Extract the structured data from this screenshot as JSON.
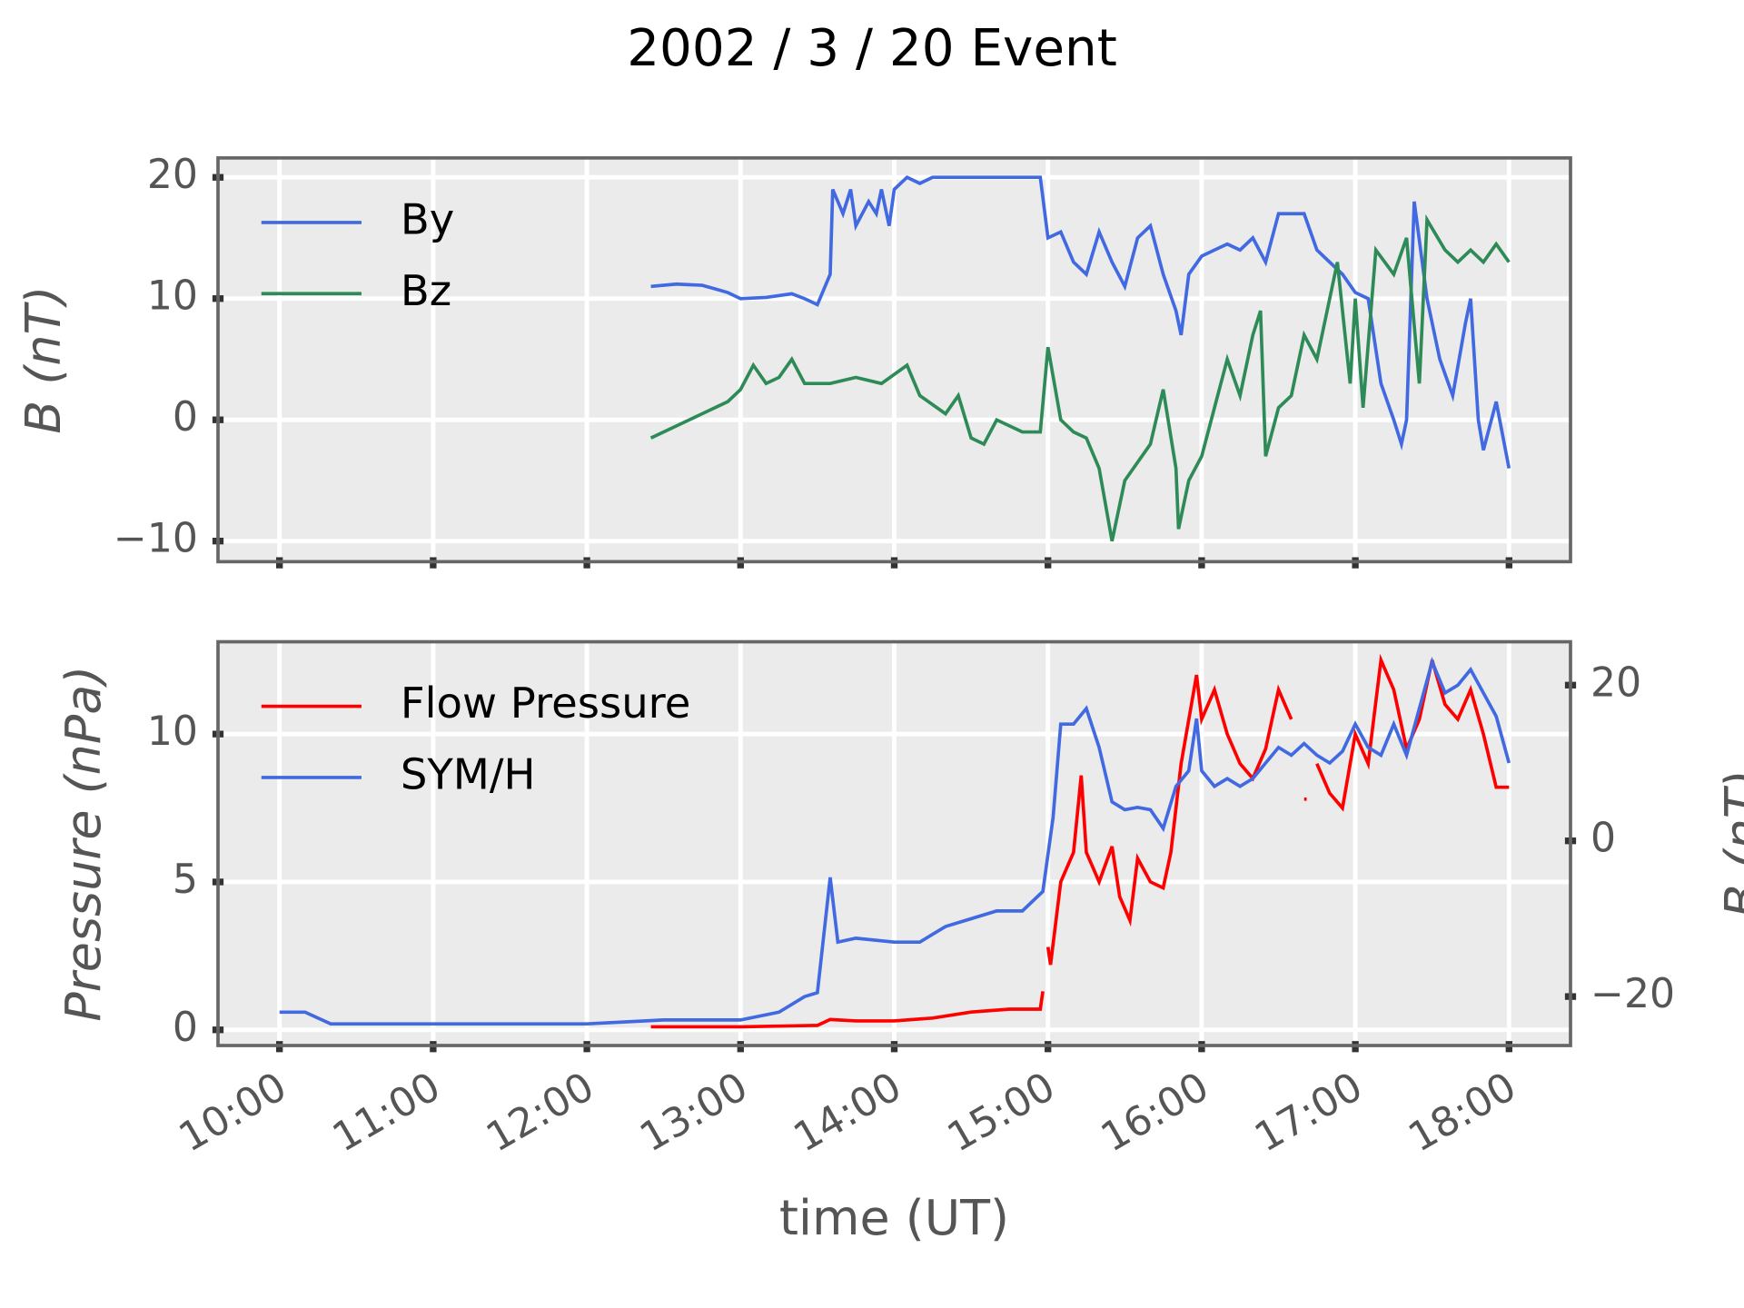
{
  "title": "2002 / 3 / 20 Event",
  "chart_data": [
    {
      "type": "line",
      "ylabel": "B (nT)",
      "grid": true,
      "legend": "upper left",
      "xlim": [
        "09:36",
        "18:24"
      ],
      "xticks": [
        "10:00",
        "11:00",
        "12:00",
        "13:00",
        "14:00",
        "15:00",
        "16:00",
        "17:00",
        "18:00"
      ],
      "ylim": [
        -11.7,
        21.6
      ],
      "yticks": [
        {
          "value": -10,
          "label": "−10"
        },
        0,
        10,
        20
      ],
      "series": [
        {
          "name": "By",
          "color": "#4169e1",
          "x": [
            "12:25",
            "12:35",
            "12:45",
            "12:50",
            "12:55",
            "13:00",
            "13:10",
            "13:20",
            "13:25",
            "13:30",
            "13:33",
            "13:35",
            "13:36",
            "13:40",
            "13:43",
            "13:45",
            "13:50",
            "13:53",
            "13:55",
            "13:58",
            "14:00",
            "14:05",
            "14:10",
            "14:15",
            "14:30",
            "14:45",
            "14:57",
            "15:00",
            "15:05",
            "15:10",
            "15:15",
            "15:20",
            "15:25",
            "15:30",
            "15:35",
            "15:40",
            "15:45",
            "15:50",
            "15:52",
            "15:55",
            "16:00",
            "16:05",
            "16:10",
            "16:15",
            "16:20",
            "16:25",
            "16:30",
            "16:40",
            "16:45",
            "16:50",
            "16:55",
            "17:00",
            "17:05",
            "17:10",
            "17:15",
            "17:18",
            "17:20",
            "17:23",
            "17:28",
            "17:33",
            "17:38",
            "17:43",
            "17:45",
            "17:48",
            "17:50",
            "17:55",
            "18:00"
          ],
          "values": [
            11,
            11.2,
            11.1,
            10.8,
            10.5,
            10,
            10.1,
            10.4,
            10,
            9.5,
            11,
            12,
            19,
            17,
            19,
            16,
            18,
            17,
            19,
            16,
            19,
            20,
            19.5,
            20,
            20,
            20,
            20,
            15,
            15.5,
            13,
            12,
            15.5,
            13,
            11,
            15,
            16,
            12,
            9,
            7,
            12,
            13.5,
            14,
            14.5,
            14,
            15,
            13,
            17,
            17,
            14,
            13,
            12,
            10.5,
            10,
            3,
            0,
            -2,
            0,
            18,
            10,
            5,
            2,
            8,
            10,
            0,
            -2.5,
            1.5,
            -4
          ]
        },
        {
          "name": "Bz",
          "color": "#2e8b57",
          "x": [
            "12:25",
            "12:35",
            "12:45",
            "12:55",
            "13:00",
            "13:05",
            "13:10",
            "13:15",
            "13:20",
            "13:25",
            "13:35",
            "13:45",
            "13:55",
            "14:05",
            "14:10",
            "14:20",
            "14:25",
            "14:30",
            "14:35",
            "14:40",
            "14:50",
            "14:57",
            "15:00",
            "15:05",
            "15:10",
            "15:15",
            "15:20",
            "15:25",
            "15:30",
            "15:40",
            "15:45",
            "15:50",
            "15:51",
            "15:55",
            "16:00",
            "16:05",
            "16:10",
            "16:15",
            "16:20",
            "16:23",
            "16:25",
            "16:30",
            "16:35",
            "16:40",
            "16:45",
            "16:50",
            "16:53",
            "16:58",
            "17:00",
            "17:03",
            "17:08",
            "17:15",
            "17:20",
            "17:25",
            "17:28",
            "17:35",
            "17:40",
            "17:45",
            "17:50",
            "17:55",
            "18:00"
          ],
          "values": [
            -1.5,
            -0.5,
            0.5,
            1.5,
            2.5,
            4.5,
            3,
            3.5,
            5,
            3,
            3,
            3.5,
            3,
            4.5,
            2,
            0.5,
            2,
            -1.5,
            -2,
            0,
            -1,
            -1,
            6,
            0,
            -1,
            -1.5,
            -4,
            -10,
            -5,
            -2,
            2.5,
            -4,
            -9,
            -5,
            -3,
            1,
            5,
            2,
            7,
            9,
            -3,
            1,
            2,
            7,
            5,
            10,
            13,
            3,
            10,
            1,
            14,
            12,
            15,
            3,
            16.5,
            14,
            13,
            14,
            13,
            14.5,
            13
          ]
        }
      ]
    },
    {
      "type": "line",
      "ylabel": "Pressure (nPa)",
      "y2label": "B (nT)",
      "xlabel": "time (UT)",
      "grid": true,
      "legend": "upper left",
      "xlim": [
        "09:36",
        "18:24"
      ],
      "xticks": [
        "10:00",
        "11:00",
        "12:00",
        "13:00",
        "14:00",
        "15:00",
        "16:00",
        "17:00",
        "18:00"
      ],
      "ylim": [
        -0.53,
        13.12
      ],
      "yticks": [
        0,
        5,
        10
      ],
      "y2lim": [
        -26.29,
        25.57
      ],
      "y2ticks": [
        {
          "value": -20,
          "label": "−20"
        },
        0,
        20
      ],
      "series": [
        {
          "name": "Flow Pressure",
          "color": "#ff0000",
          "x": [
            "12:25",
            "13:00",
            "13:30",
            "13:35",
            "13:45",
            "14:00",
            "14:15",
            "14:30",
            "14:45",
            "14:57",
            "14:58",
            "14:59",
            "15:00",
            "15:01",
            "15:05",
            "15:10",
            "15:13",
            "15:15",
            "15:20",
            "15:25",
            "15:28",
            "15:32",
            "15:35",
            "15:40",
            "15:45",
            "15:48",
            "15:52",
            "15:58",
            "16:00",
            "16:05",
            "16:10",
            "16:15",
            "16:20",
            "16:25",
            "16:30",
            "16:35",
            "16:38",
            "16:40",
            "16:41",
            "16:43",
            "16:45",
            "16:50",
            "16:55",
            "17:00",
            "17:05",
            "17:10",
            "17:15",
            "17:20",
            "17:25",
            "17:30",
            "17:35",
            "17:40",
            "17:45",
            "17:50",
            "17:55",
            "18:00"
          ],
          "values": [
            0.1,
            0.1,
            0.15,
            0.35,
            0.3,
            0.3,
            0.4,
            0.6,
            0.7,
            0.7,
            1.3,
            null,
            2.8,
            2.2,
            5,
            6,
            8.6,
            6,
            5,
            6.2,
            4.5,
            3.7,
            5.8,
            5,
            4.8,
            6,
            9,
            12,
            10.5,
            11.5,
            10,
            9,
            8.5,
            9.5,
            11.5,
            10.5,
            null,
            7.8,
            7.8,
            null,
            9,
            8,
            7.5,
            10,
            9,
            12.5,
            11.5,
            9.5,
            10.5,
            12.5,
            11,
            10.5,
            11.5,
            10,
            8.2,
            8.2
          ]
        },
        {
          "name": "SYM/H",
          "color": "#4169e1",
          "axis": "y2",
          "x": [
            "10:00",
            "10:10",
            "10:20",
            "10:30",
            "11:00",
            "11:30",
            "12:00",
            "12:30",
            "13:00",
            "13:15",
            "13:25",
            "13:30",
            "13:35",
            "13:38",
            "13:45",
            "14:00",
            "14:10",
            "14:15",
            "14:20",
            "14:30",
            "14:40",
            "14:50",
            "14:58",
            "15:02",
            "15:05",
            "15:10",
            "15:15",
            "15:20",
            "15:25",
            "15:30",
            "15:35",
            "15:40",
            "15:45",
            "15:50",
            "15:55",
            "15:58",
            "16:00",
            "16:05",
            "16:10",
            "16:15",
            "16:20",
            "16:25",
            "16:30",
            "16:35",
            "16:40",
            "16:45",
            "16:50",
            "16:55",
            "17:00",
            "17:05",
            "17:10",
            "17:15",
            "17:20",
            "17:25",
            "17:30",
            "17:35",
            "17:40",
            "17:45",
            "17:50",
            "17:55",
            "18:00"
          ],
          "values": [
            -22,
            -22,
            -23.5,
            -23.5,
            -23.5,
            -23.5,
            -23.5,
            -23,
            -23,
            -22,
            -20,
            -19.5,
            -4.7,
            -13,
            -12.5,
            -13,
            -13,
            -12,
            -11,
            -10,
            -9,
            -9,
            -6.5,
            3,
            15,
            15,
            17,
            12,
            5,
            4,
            4.3,
            4,
            1.6,
            7,
            9,
            15.7,
            9,
            7,
            8,
            7,
            8,
            10,
            12,
            11,
            12.5,
            11,
            10,
            11.5,
            15,
            12,
            11,
            15,
            11,
            17,
            23,
            19,
            20,
            22,
            19,
            16,
            10
          ]
        }
      ]
    }
  ]
}
